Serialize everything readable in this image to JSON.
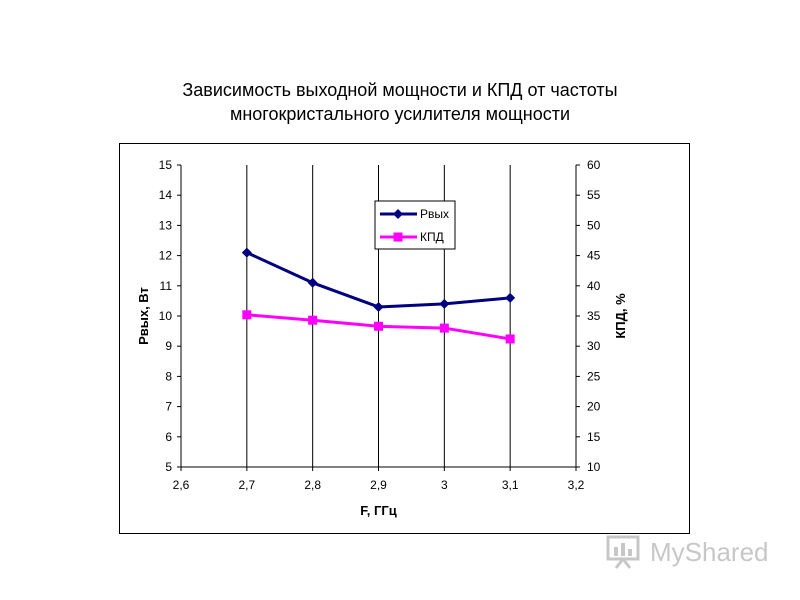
{
  "title_line1": "Зависимость выходной мощности и КПД от частоты",
  "title_line2": "многокристального усилителя мощности",
  "watermark": "MyShared",
  "chart_data": {
    "type": "line",
    "title": "Зависимость выходной мощности и КПД от частоты многокристального усилителя мощности",
    "xlabel": "F, ГГц",
    "ylabel": "Рвых, Вт",
    "y2label": "КПД, %",
    "xlim": [
      2.6,
      3.2
    ],
    "ylim": [
      5,
      15
    ],
    "y2lim": [
      10,
      60
    ],
    "x_ticks": [
      "2,6",
      "2,7",
      "2,8",
      "2,9",
      "3",
      "3,1",
      "3,2"
    ],
    "y_ticks": [
      "5",
      "6",
      "7",
      "8",
      "9",
      "10",
      "11",
      "12",
      "13",
      "14",
      "15"
    ],
    "y2_ticks": [
      "10",
      "15",
      "20",
      "25",
      "30",
      "35",
      "40",
      "45",
      "50",
      "55",
      "60"
    ],
    "grid": "vertical",
    "legend_position": "top-center",
    "series": [
      {
        "name": "Рвых",
        "axis": "left",
        "color": "#000080",
        "marker": "diamond",
        "x": [
          2.7,
          2.8,
          2.9,
          3.0,
          3.1
        ],
        "y": [
          12.1,
          11.1,
          10.3,
          10.4,
          10.6
        ]
      },
      {
        "name": "КПД",
        "axis": "right",
        "color": "#ff00ff",
        "marker": "square",
        "x": [
          2.7,
          2.8,
          2.9,
          3.0,
          3.1
        ],
        "y": [
          35.2,
          34.3,
          33.3,
          33.0,
          31.2
        ]
      }
    ]
  }
}
